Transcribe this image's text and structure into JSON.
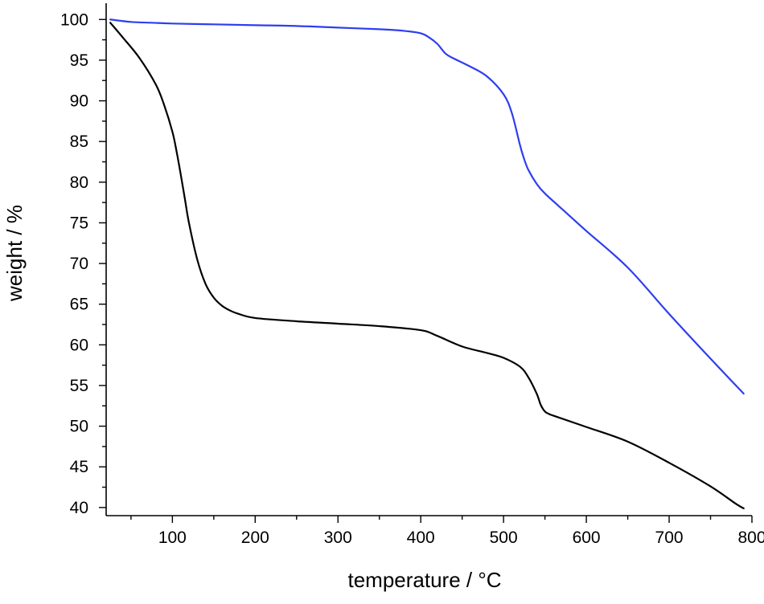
{
  "chart_data": {
    "type": "line",
    "title": "",
    "xlabel": "temperature / °C",
    "ylabel": "weight / %",
    "xlim": [
      20,
      800
    ],
    "ylim": [
      39,
      102
    ],
    "xticks": [
      100,
      200,
      300,
      400,
      500,
      600,
      700,
      800
    ],
    "xtick_labels": [
      "100",
      "200",
      "300",
      "400",
      "500",
      "600",
      "700",
      "800"
    ],
    "yticks": [
      40,
      45,
      50,
      55,
      60,
      65,
      70,
      75,
      80,
      85,
      90,
      95,
      100
    ],
    "ytick_labels": [
      "40",
      "45",
      "50",
      "55",
      "60",
      "65",
      "70",
      "75",
      "80",
      "85",
      "90",
      "95",
      "100"
    ],
    "grid": false,
    "legend": "none",
    "series": [
      {
        "color": "#2e3ef0",
        "x": [
          25,
          50,
          75,
          100,
          150,
          200,
          250,
          300,
          350,
          380,
          400,
          410,
          420,
          430,
          440,
          460,
          480,
          500,
          510,
          520,
          525,
          530,
          540,
          550,
          575,
          600,
          650,
          700,
          750,
          790
        ],
        "y": [
          100,
          99.7,
          99.6,
          99.5,
          99.4,
          99.3,
          99.2,
          99.0,
          98.8,
          98.6,
          98.3,
          97.8,
          97.0,
          95.8,
          95.2,
          94.2,
          93.0,
          90.8,
          88.5,
          84.5,
          82.8,
          81.5,
          79.8,
          78.6,
          76.3,
          74.0,
          69.5,
          63.8,
          58.3,
          54.0
        ]
      },
      {
        "color": "#000000",
        "x": [
          25,
          40,
          60,
          80,
          90,
          100,
          105,
          110,
          115,
          120,
          130,
          140,
          150,
          160,
          170,
          180,
          200,
          250,
          300,
          350,
          400,
          420,
          450,
          480,
          500,
          520,
          530,
          540,
          545,
          550,
          555,
          560,
          600,
          650,
          700,
          750,
          780,
          790
        ],
        "y": [
          99.6,
          97.8,
          95.3,
          92.0,
          89.5,
          86.2,
          83.8,
          81.0,
          78.0,
          75.0,
          70.5,
          67.5,
          65.8,
          64.8,
          64.2,
          63.8,
          63.3,
          62.9,
          62.6,
          62.3,
          61.8,
          61.1,
          59.8,
          59.0,
          58.4,
          57.3,
          56.0,
          54.0,
          52.6,
          51.8,
          51.5,
          51.3,
          49.9,
          48.1,
          45.5,
          42.6,
          40.5,
          39.9
        ]
      }
    ]
  }
}
